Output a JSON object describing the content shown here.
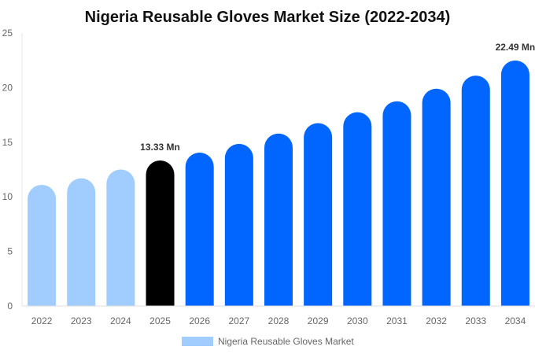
{
  "chart_data": {
    "type": "bar",
    "title": "Nigeria Reusable Gloves Market Size (2022-2034)",
    "categories": [
      "2022",
      "2023",
      "2024",
      "2025",
      "2026",
      "2027",
      "2028",
      "2029",
      "2030",
      "2031",
      "2032",
      "2033",
      "2034"
    ],
    "series": [
      {
        "name": "Nigeria Reusable Gloves Market",
        "values": [
          11.1,
          11.7,
          12.5,
          13.33,
          14.05,
          14.85,
          15.8,
          16.75,
          17.75,
          18.75,
          19.9,
          21.1,
          22.49
        ]
      }
    ],
    "bar_colors": {
      "historical": "#a0cdfd",
      "current": "#000000",
      "forecast": "#0066ff"
    },
    "color_groups": [
      "historical",
      "historical",
      "historical",
      "current",
      "forecast",
      "forecast",
      "forecast",
      "forecast",
      "forecast",
      "forecast",
      "forecast",
      "forecast",
      "forecast"
    ],
    "data_labels": [
      {
        "category": "2025",
        "text": "13.33 Mn"
      },
      {
        "category": "2034",
        "text": "22.49 Mn"
      }
    ],
    "ylim": [
      0,
      25
    ],
    "yticks": [
      0,
      5,
      10,
      15,
      20,
      25
    ],
    "xlabel": "",
    "ylabel": "",
    "grid": false,
    "legend_position": "bottom",
    "legend_color": "#a0cdfd"
  }
}
